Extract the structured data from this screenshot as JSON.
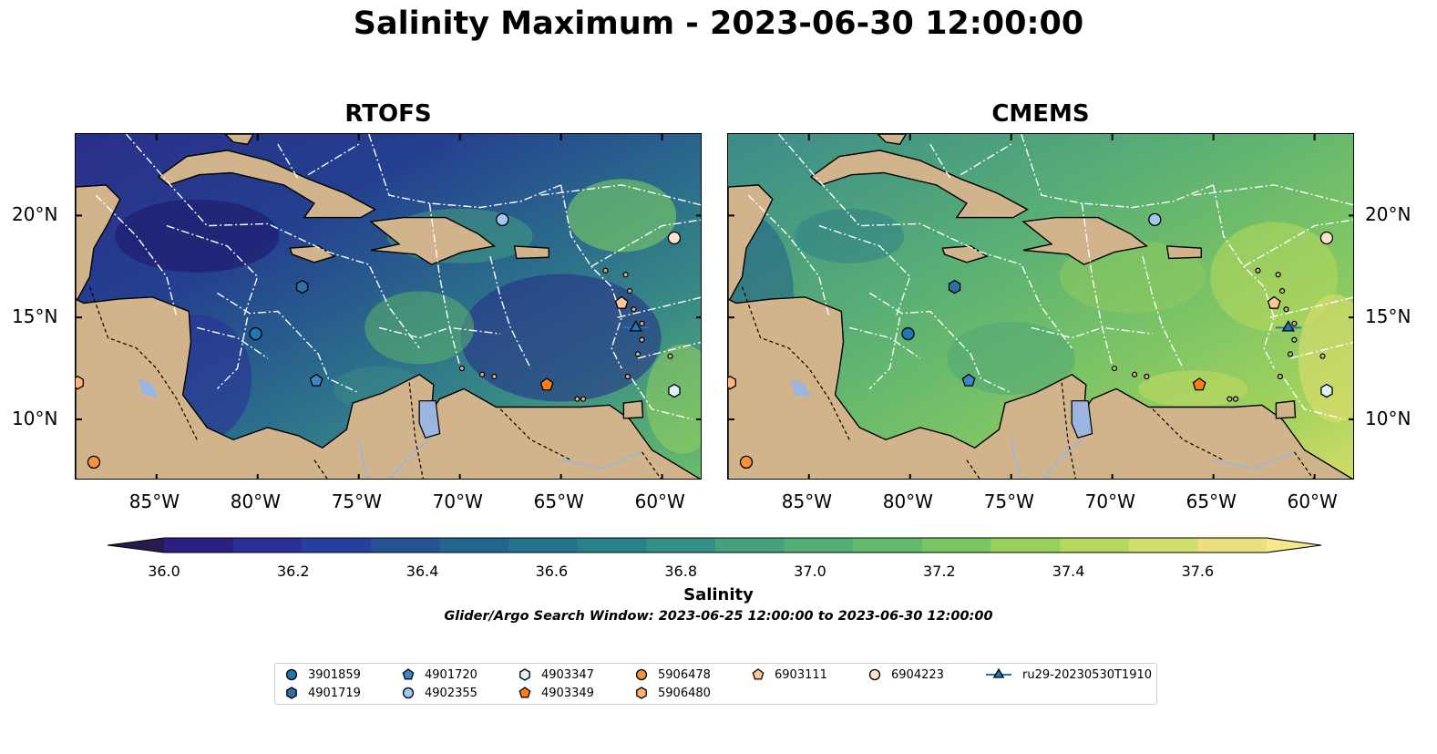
{
  "title": "Salinity Maximum - 2023-06-30 12:00:00",
  "panels": [
    {
      "title": "RTOFS"
    },
    {
      "title": "CMEMS"
    }
  ],
  "axes": {
    "lon_ticks": [
      "85°W",
      "80°W",
      "75°W",
      "70°W",
      "65°W",
      "60°W"
    ],
    "lat_ticks": [
      "20°N",
      "15°N",
      "10°N"
    ],
    "lon_range": [
      -89,
      -58
    ],
    "lat_range": [
      7,
      24
    ]
  },
  "colorbar": {
    "label": "Salinity",
    "ticks": [
      "36.0",
      "36.2",
      "36.4",
      "36.6",
      "36.8",
      "37.0",
      "37.2",
      "37.4",
      "37.6"
    ],
    "min": 35.9,
    "max": 37.6,
    "step": 0.1,
    "extend": "both",
    "colormap": "haline"
  },
  "subtitle": "Glider/Argo Search Window: 2023-06-25 12:00:00 to 2023-06-30 12:00:00",
  "legend": {
    "items": [
      {
        "label": "3901859",
        "marker": "circle",
        "color": "#1f77b4"
      },
      {
        "label": "4901719",
        "marker": "hexagon",
        "color": "#2e6fa8"
      },
      {
        "label": "4901720",
        "marker": "pentagon",
        "color": "#3d86c6"
      },
      {
        "label": "4902355",
        "marker": "circle",
        "color": "#9ec8ee"
      },
      {
        "label": "4903347",
        "marker": "hexagon",
        "color": "#dff0fb"
      },
      {
        "label": "4903349",
        "marker": "pentagon",
        "color": "#ff7f0e"
      },
      {
        "label": "5906478",
        "marker": "circle",
        "color": "#f5923a"
      },
      {
        "label": "5906480",
        "marker": "hexagon",
        "color": "#ffb27a"
      },
      {
        "label": "6903111",
        "marker": "pentagon",
        "color": "#ffc79a"
      },
      {
        "label": "6904223",
        "marker": "circle",
        "color": "#fde3c8"
      },
      {
        "label": "ru29-20230530T1910",
        "marker": "triangle-line",
        "color": "#1f77b4"
      }
    ]
  },
  "chart_data": {
    "type": "map",
    "observations": [
      {
        "id": "3901859",
        "lon": -80.1,
        "lat": 14.2
      },
      {
        "id": "4901719",
        "lon": -77.8,
        "lat": 16.5
      },
      {
        "id": "4901720",
        "lon": -77.1,
        "lat": 11.9
      },
      {
        "id": "4902355",
        "lon": -67.9,
        "lat": 19.8
      },
      {
        "id": "4903347",
        "lon": -59.4,
        "lat": 11.4
      },
      {
        "id": "4903349",
        "lon": -65.7,
        "lat": 11.7
      },
      {
        "id": "5906478",
        "lon": -88.1,
        "lat": 7.9
      },
      {
        "id": "5906480",
        "lon": -88.9,
        "lat": 11.8
      },
      {
        "id": "6903111",
        "lon": -62.0,
        "lat": 15.7
      },
      {
        "id": "6904223",
        "lon": -59.4,
        "lat": 18.9
      },
      {
        "id": "ru29-20230530T1910",
        "lon": -61.3,
        "lat": 14.5
      }
    ]
  }
}
